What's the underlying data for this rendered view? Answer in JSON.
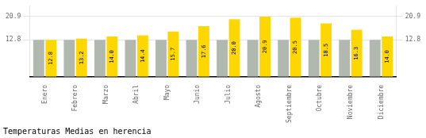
{
  "chart_data": {
    "type": "bar",
    "title": "Temperaturas Medias en herencia",
    "categories": [
      "Enero",
      "Febrero",
      "Marzo",
      "Abril",
      "Mayo",
      "Junio",
      "Julio",
      "Agosto",
      "Septiembre",
      "Octubre",
      "Noviembre",
      "Diciembre"
    ],
    "series": [
      {
        "color": "#B0B8B0",
        "values": [
          12.8,
          12.8,
          12.8,
          12.8,
          12.8,
          12.8,
          12.8,
          12.8,
          12.8,
          12.8,
          12.8,
          12.8
        ]
      },
      {
        "color": "#FFD700",
        "values": [
          12.8,
          13.2,
          14.0,
          14.4,
          15.7,
          17.6,
          20.0,
          20.9,
          20.5,
          18.5,
          16.3,
          14.0
        ],
        "data_labels": true,
        "value_labels": [
          "12.8",
          "13.2",
          "14.0",
          "14.4",
          "15.7",
          "17.6",
          "20.0",
          "20.9",
          "20.5",
          "18.5",
          "16.3",
          "14.0"
        ]
      }
    ],
    "ylim": [
      0,
      24.5
    ],
    "yticks": [
      12.8,
      20.9
    ],
    "y2lim": [
      0,
      24.5
    ],
    "y2ticks": [
      12.8,
      20.9
    ],
    "grid": true,
    "legend": false
  }
}
